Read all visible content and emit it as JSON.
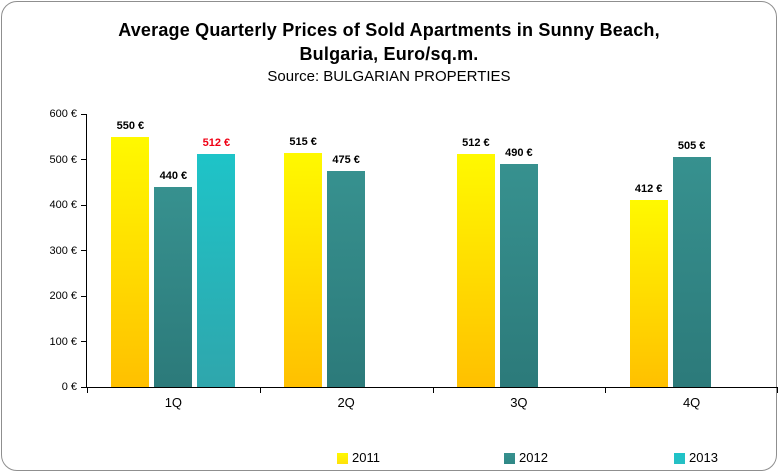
{
  "chart_data": {
    "type": "bar",
    "title_lines": [
      "Average Quarterly Prices of Sold Apartments in Sunny Beach,",
      "Bulgaria, Euro/sq.m."
    ],
    "title": "Average Quarterly Prices of Sold Apartments in Sunny Beach, Bulgaria, Euro/sq.m.",
    "source_label": "Source: BULGARIAN PROPERTIES",
    "categories": [
      "1Q",
      "2Q",
      "3Q",
      "4Q"
    ],
    "series": [
      {
        "name": "2011",
        "values": [
          550,
          515,
          512,
          412
        ],
        "labels": [
          "550 €",
          "515 €",
          "512 €",
          "412 €"
        ],
        "label_colors": [
          null,
          null,
          null,
          null
        ],
        "color_top": "#FFF900",
        "color_bottom": "#FFC000",
        "legend_color": "#FFE10A"
      },
      {
        "name": "2012",
        "values": [
          440,
          475,
          490,
          505
        ],
        "labels": [
          "440 €",
          "475 €",
          "490 €",
          "505 €"
        ],
        "label_colors": [
          null,
          null,
          null,
          null
        ],
        "color_top": "#37918F",
        "color_bottom": "#2C7A7A",
        "legend_color": "#2F8886"
      },
      {
        "name": "2013",
        "values": [
          512,
          null,
          null,
          null
        ],
        "labels": [
          "512 €",
          null,
          null,
          null
        ],
        "label_colors": [
          "#F00014",
          null,
          null,
          null
        ],
        "color_top": "#1EC4C8",
        "color_bottom": "#2FA6AC",
        "legend_color": "#26BFC4"
      }
    ],
    "y_axis": {
      "min": 0,
      "max": 600,
      "step": 100,
      "tick_labels": [
        "0 €",
        "100 €",
        "200 €",
        "300 €",
        "400 €",
        "500 €",
        "600 €"
      ]
    },
    "ylim": [
      0,
      600
    ],
    "grid": false,
    "legend_position": "bottom",
    "default_label_color": "#000000",
    "axis_color": "#000000"
  }
}
